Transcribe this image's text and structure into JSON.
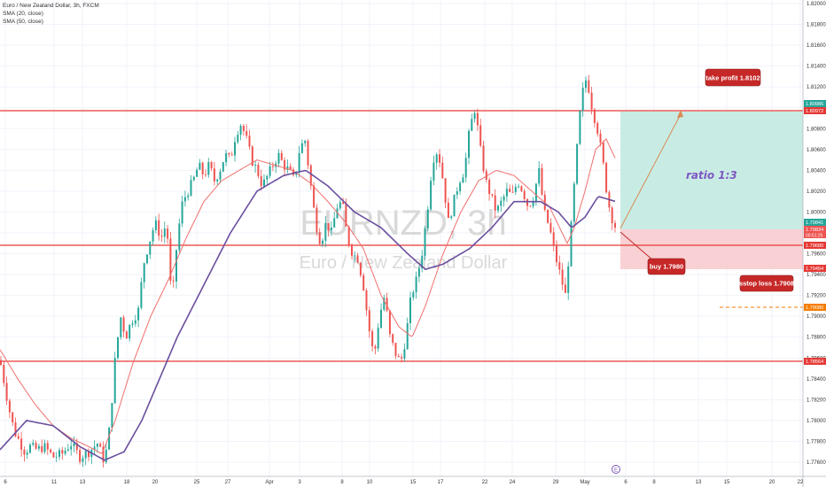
{
  "legend": {
    "title": "Euro / New Zealand Dollar, 3h, FXCM",
    "sma20": "SMA (20, close)",
    "sma50": "SMA (50, close)"
  },
  "watermark": {
    "symbol": "EURNZD, 3h",
    "name": "Euro / New Zealand Dollar"
  },
  "colors": {
    "up": "#26a69a",
    "down": "#ef5350",
    "sma20": "#ef6f6c",
    "sma50": "#6b4f9e",
    "level_line": "#e53935",
    "tp_zone": "#c8ece4",
    "sl_zone": "#f9d0d4",
    "arrow": "#d98a55",
    "callout": "#c62828",
    "orange_tag": "#f57c00",
    "last_price_tag": "#26a69a"
  },
  "y_axis_ticks": [
    "1.82000",
    "1.81800",
    "1.81600",
    "1.81400",
    "1.81200",
    "1.81000",
    "1.80800",
    "1.80600",
    "1.80400",
    "1.80200",
    "1.80000",
    "1.79800",
    "1.79600",
    "1.79400",
    "1.79200",
    "1.79000",
    "1.78800",
    "1.78600",
    "1.78400",
    "1.78200",
    "1.78000",
    "1.77800",
    "1.77600"
  ],
  "x_axis_ticks": [
    "6",
    "11",
    "13",
    "18",
    "20",
    "25",
    "27",
    "Apr",
    "3",
    "8",
    "10",
    "15",
    "17",
    "22",
    "24",
    "29",
    "May",
    "6",
    "8",
    "13",
    "15",
    "20",
    "22"
  ],
  "price_tags": {
    "tp_upper": "1.80986",
    "tp_line": "1.80972",
    "last_a": "1.79841",
    "last_b": "1.79834",
    "countdown": "00:51:25",
    "buy_line": "1.79680",
    "sl_zone": "1.79454",
    "stop": "1.79080",
    "support": "1.78564"
  },
  "annotations": {
    "take_profit": "take profit 1.8102",
    "buy": "buy 1.7980",
    "stop_loss": "sstop  loss 1.7908",
    "ratio": "ratio 1:3",
    "event_marker": "E"
  },
  "chart_data": {
    "type": "line",
    "symbol": "EURNZD",
    "timeframe": "3h",
    "ylim": [
      1.7755,
      1.8205
    ],
    "horizontal_levels": [
      1.80972,
      1.7968,
      1.78564
    ],
    "stop_loss_level": 1.7908,
    "position": {
      "entry": 1.798,
      "take_profit": 1.8102,
      "stop_zone_low": 1.79454,
      "ratio": "1:3"
    },
    "series": [
      {
        "name": "Euro / New Zealand Dollar",
        "kind": "candles",
        "points": [
          [
            0,
            1.7858
          ],
          [
            4,
            1.784
          ],
          [
            10,
            1.7812
          ],
          [
            16,
            1.779
          ],
          [
            22,
            1.778
          ],
          [
            28,
            1.777
          ],
          [
            34,
            1.7775
          ],
          [
            42,
            1.7772
          ],
          [
            50,
            1.7775
          ],
          [
            60,
            1.7765
          ],
          [
            70,
            1.7768
          ],
          [
            80,
            1.7778
          ],
          [
            90,
            1.7765
          ],
          [
            100,
            1.777
          ],
          [
            110,
            1.7778
          ],
          [
            118,
            1.776
          ],
          [
            124,
            1.7795
          ],
          [
            130,
            1.786
          ],
          [
            136,
            1.79
          ],
          [
            142,
            1.788
          ],
          [
            148,
            1.7895
          ],
          [
            156,
            1.7905
          ],
          [
            162,
            1.795
          ],
          [
            168,
            1.797
          ],
          [
            175,
            1.799
          ],
          [
            182,
            1.7975
          ],
          [
            188,
            1.799
          ],
          [
            194,
            1.791
          ],
          [
            200,
            1.7975
          ],
          [
            206,
            1.801
          ],
          [
            212,
            1.802
          ],
          [
            218,
            1.803
          ],
          [
            224,
            1.8045
          ],
          [
            230,
            1.8035
          ],
          [
            236,
            1.8045
          ],
          [
            242,
            1.803
          ],
          [
            248,
            1.804
          ],
          [
            254,
            1.8055
          ],
          [
            260,
            1.805
          ],
          [
            266,
            1.8075
          ],
          [
            272,
            1.8085
          ],
          [
            278,
            1.807
          ],
          [
            284,
            1.805
          ],
          [
            290,
            1.804
          ],
          [
            296,
            1.8025
          ],
          [
            302,
            1.8035
          ],
          [
            308,
            1.8045
          ],
          [
            314,
            1.8055
          ],
          [
            320,
            1.8045
          ],
          [
            326,
            1.804
          ],
          [
            332,
            1.803
          ],
          [
            338,
            1.806
          ],
          [
            344,
            1.807
          ],
          [
            350,
            1.803
          ],
          [
            356,
            1.799
          ],
          [
            362,
            1.797
          ],
          [
            368,
            1.799
          ],
          [
            374,
            1.798
          ],
          [
            380,
            1.8005
          ],
          [
            386,
            1.801
          ],
          [
            392,
            1.7975
          ],
          [
            398,
            1.796
          ],
          [
            404,
            1.7955
          ],
          [
            410,
            1.793
          ],
          [
            416,
            1.789
          ],
          [
            422,
            1.786
          ],
          [
            428,
            1.79
          ],
          [
            434,
            1.792
          ],
          [
            440,
            1.788
          ],
          [
            446,
            1.7865
          ],
          [
            452,
            1.7855
          ],
          [
            458,
            1.788
          ],
          [
            464,
            1.792
          ],
          [
            470,
            1.7935
          ],
          [
            476,
            1.796
          ],
          [
            482,
            1.8
          ],
          [
            488,
            1.805
          ],
          [
            494,
            1.806
          ],
          [
            500,
            1.803
          ],
          [
            506,
            1.799
          ],
          [
            512,
            1.801
          ],
          [
            518,
            1.803
          ],
          [
            524,
            1.804
          ],
          [
            530,
            1.808
          ],
          [
            536,
            1.81
          ],
          [
            542,
            1.806
          ],
          [
            548,
            1.803
          ],
          [
            554,
            1.8015
          ],
          [
            560,
            1.8
          ],
          [
            566,
            1.801
          ],
          [
            572,
            1.802
          ],
          [
            578,
            1.8015
          ],
          [
            584,
            1.803
          ],
          [
            590,
            1.802
          ],
          [
            596,
            1.8005
          ],
          [
            602,
            1.8015
          ],
          [
            608,
            1.804
          ],
          [
            614,
            1.8
          ],
          [
            620,
            1.7985
          ],
          [
            626,
            1.796
          ],
          [
            632,
            1.794
          ],
          [
            638,
            1.792
          ],
          [
            644,
            1.798
          ],
          [
            650,
            1.805
          ],
          [
            656,
            1.811
          ],
          [
            662,
            1.813
          ],
          [
            668,
            1.81
          ],
          [
            674,
            1.808
          ],
          [
            680,
            1.805
          ],
          [
            686,
            1.801
          ],
          [
            692,
            1.799
          ],
          [
            696,
            1.7983
          ]
        ]
      },
      {
        "name": "SMA (20, close)",
        "kind": "line",
        "points": [
          [
            0,
            1.7868
          ],
          [
            20,
            1.784
          ],
          [
            40,
            1.7815
          ],
          [
            60,
            1.7795
          ],
          [
            80,
            1.7783
          ],
          [
            100,
            1.7775
          ],
          [
            115,
            1.7768
          ],
          [
            130,
            1.78
          ],
          [
            150,
            1.7855
          ],
          [
            170,
            1.79
          ],
          [
            190,
            1.7935
          ],
          [
            210,
            1.7975
          ],
          [
            230,
            1.801
          ],
          [
            250,
            1.803
          ],
          [
            270,
            1.804
          ],
          [
            290,
            1.805
          ],
          [
            310,
            1.8045
          ],
          [
            330,
            1.804
          ],
          [
            350,
            1.8028
          ],
          [
            370,
            1.801
          ],
          [
            390,
            1.799
          ],
          [
            410,
            1.7965
          ],
          [
            430,
            1.792
          ],
          [
            450,
            1.789
          ],
          [
            465,
            1.788
          ],
          [
            480,
            1.791
          ],
          [
            500,
            1.796
          ],
          [
            520,
            1.8
          ],
          [
            540,
            1.803
          ],
          [
            560,
            1.804
          ],
          [
            580,
            1.8035
          ],
          [
            600,
            1.802
          ],
          [
            620,
            1.8005
          ],
          [
            640,
            1.797
          ],
          [
            648,
            1.7985
          ],
          [
            660,
            1.802
          ],
          [
            672,
            1.806
          ],
          [
            684,
            1.807
          ],
          [
            695,
            1.805
          ]
        ]
      },
      {
        "name": "SMA (50, close)",
        "kind": "line",
        "points": [
          [
            0,
            1.7772
          ],
          [
            30,
            1.78
          ],
          [
            60,
            1.7795
          ],
          [
            90,
            1.7775
          ],
          [
            118,
            1.7762
          ],
          [
            140,
            1.777
          ],
          [
            160,
            1.78
          ],
          [
            180,
            1.784
          ],
          [
            200,
            1.788
          ],
          [
            230,
            1.793
          ],
          [
            260,
            1.798
          ],
          [
            290,
            1.802
          ],
          [
            320,
            1.8035
          ],
          [
            345,
            1.804
          ],
          [
            370,
            1.8025
          ],
          [
            400,
            1.8
          ],
          [
            430,
            1.7985
          ],
          [
            460,
            1.796
          ],
          [
            480,
            1.7945
          ],
          [
            500,
            1.795
          ],
          [
            530,
            1.7965
          ],
          [
            555,
            1.7985
          ],
          [
            580,
            1.801
          ],
          [
            610,
            1.801
          ],
          [
            630,
            1.8
          ],
          [
            645,
            1.7985
          ],
          [
            660,
            1.7995
          ],
          [
            675,
            1.8015
          ],
          [
            695,
            1.801
          ]
        ]
      }
    ]
  }
}
